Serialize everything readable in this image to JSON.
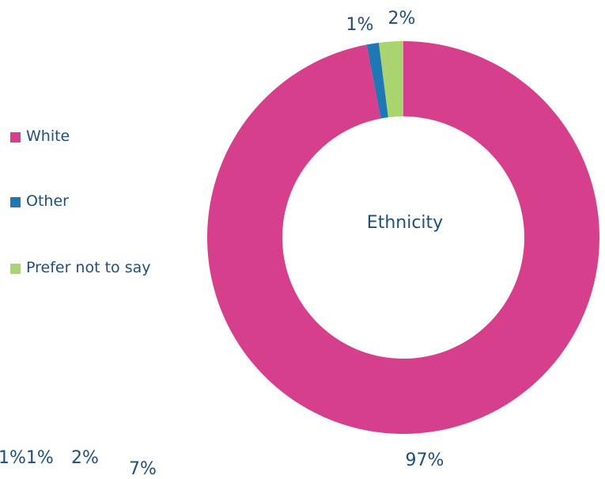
{
  "chart_data": {
    "type": "pie",
    "donut": true,
    "center_label": "Ethnicity",
    "legend_position": "left",
    "categories": [
      "White",
      "Other",
      "Prefer not to say"
    ],
    "values": [
      97,
      1,
      2
    ],
    "data_labels": [
      "97%",
      "1%",
      "2%"
    ],
    "colors": [
      "#d63f8c",
      "#1f77b4",
      "#a9d46f"
    ]
  },
  "partial_chart_labels": [
    "1%1%",
    "2%",
    "7%"
  ]
}
